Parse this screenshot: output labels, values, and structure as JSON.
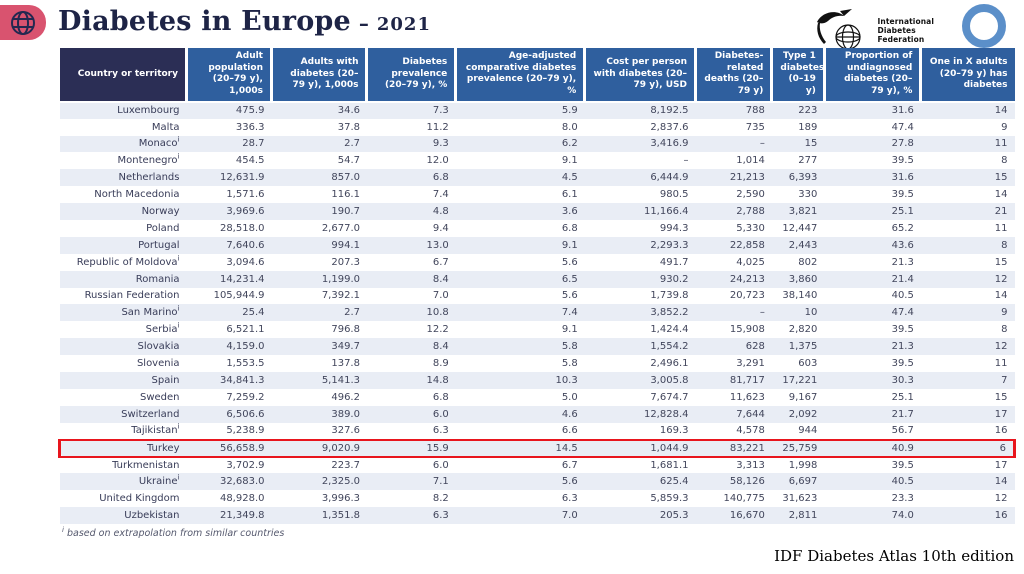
{
  "header": {
    "title": "Diabetes in Europe",
    "separator": "–",
    "year": "2021",
    "idf_name_lines": [
      "International",
      "Diabetes",
      "Federation"
    ]
  },
  "table": {
    "columns": [
      "Country or territory",
      "Adult population (20–79 y), 1,000s",
      "Adults with diabetes (20–79 y), 1,000s",
      "Diabetes prevalence (20–79 y), %",
      "Age-adjusted comparative diabetes prevalence (20–79 y), %",
      "Cost per person with diabetes (20–79 y), USD",
      "Diabetes-related deaths (20–79 y)",
      "Type 1 diabetes (0–19 y)",
      "Proportion of undiagnosed diabetes (20–79 y), %",
      "One in X adults (20–79 y) has diabetes"
    ],
    "footnote_marker": "i",
    "rows": [
      {
        "country": "Luxembourg",
        "footnote": false,
        "highlight": false,
        "values": [
          "475.9",
          "34.6",
          "7.3",
          "5.9",
          "8,192.5",
          "788",
          "223",
          "31.6",
          "14"
        ]
      },
      {
        "country": "Malta",
        "footnote": false,
        "highlight": false,
        "values": [
          "336.3",
          "37.8",
          "11.2",
          "8.0",
          "2,837.6",
          "735",
          "189",
          "47.4",
          "9"
        ]
      },
      {
        "country": "Monaco",
        "footnote": true,
        "highlight": false,
        "values": [
          "28.7",
          "2.7",
          "9.3",
          "6.2",
          "3,416.9",
          "–",
          "15",
          "27.8",
          "11"
        ]
      },
      {
        "country": "Montenegro",
        "footnote": true,
        "highlight": false,
        "values": [
          "454.5",
          "54.7",
          "12.0",
          "9.1",
          "–",
          "1,014",
          "277",
          "39.5",
          "8"
        ]
      },
      {
        "country": "Netherlands",
        "footnote": false,
        "highlight": false,
        "values": [
          "12,631.9",
          "857.0",
          "6.8",
          "4.5",
          "6,444.9",
          "21,213",
          "6,393",
          "31.6",
          "15"
        ]
      },
      {
        "country": "North Macedonia",
        "footnote": false,
        "highlight": false,
        "values": [
          "1,571.6",
          "116.1",
          "7.4",
          "6.1",
          "980.5",
          "2,590",
          "330",
          "39.5",
          "14"
        ]
      },
      {
        "country": "Norway",
        "footnote": false,
        "highlight": false,
        "values": [
          "3,969.6",
          "190.7",
          "4.8",
          "3.6",
          "11,166.4",
          "2,788",
          "3,821",
          "25.1",
          "21"
        ]
      },
      {
        "country": "Poland",
        "footnote": false,
        "highlight": false,
        "values": [
          "28,518.0",
          "2,677.0",
          "9.4",
          "6.8",
          "994.3",
          "5,330",
          "12,447",
          "65.2",
          "11"
        ]
      },
      {
        "country": "Portugal",
        "footnote": false,
        "highlight": false,
        "values": [
          "7,640.6",
          "994.1",
          "13.0",
          "9.1",
          "2,293.3",
          "22,858",
          "2,443",
          "43.6",
          "8"
        ]
      },
      {
        "country": "Republic of Moldova",
        "footnote": true,
        "highlight": false,
        "values": [
          "3,094.6",
          "207.3",
          "6.7",
          "5.6",
          "491.7",
          "4,025",
          "802",
          "21.3",
          "15"
        ]
      },
      {
        "country": "Romania",
        "footnote": false,
        "highlight": false,
        "values": [
          "14,231.4",
          "1,199.0",
          "8.4",
          "6.5",
          "930.2",
          "24,213",
          "3,860",
          "21.4",
          "12"
        ]
      },
      {
        "country": "Russian Federation",
        "footnote": false,
        "highlight": false,
        "values": [
          "105,944.9",
          "7,392.1",
          "7.0",
          "5.6",
          "1,739.8",
          "20,723",
          "38,140",
          "40.5",
          "14"
        ]
      },
      {
        "country": "San Marino",
        "footnote": true,
        "highlight": false,
        "values": [
          "25.4",
          "2.7",
          "10.8",
          "7.4",
          "3,852.2",
          "–",
          "10",
          "47.4",
          "9"
        ]
      },
      {
        "country": "Serbia",
        "footnote": true,
        "highlight": false,
        "values": [
          "6,521.1",
          "796.8",
          "12.2",
          "9.1",
          "1,424.4",
          "15,908",
          "2,820",
          "39.5",
          "8"
        ]
      },
      {
        "country": "Slovakia",
        "footnote": false,
        "highlight": false,
        "values": [
          "4,159.0",
          "349.7",
          "8.4",
          "5.8",
          "1,554.2",
          "628",
          "1,375",
          "21.3",
          "12"
        ]
      },
      {
        "country": "Slovenia",
        "footnote": false,
        "highlight": false,
        "values": [
          "1,553.5",
          "137.8",
          "8.9",
          "5.8",
          "2,496.1",
          "3,291",
          "603",
          "39.5",
          "11"
        ]
      },
      {
        "country": "Spain",
        "footnote": false,
        "highlight": false,
        "values": [
          "34,841.3",
          "5,141.3",
          "14.8",
          "10.3",
          "3,005.8",
          "81,717",
          "17,221",
          "30.3",
          "7"
        ]
      },
      {
        "country": "Sweden",
        "footnote": false,
        "highlight": false,
        "values": [
          "7,259.2",
          "496.2",
          "6.8",
          "5.0",
          "7,674.7",
          "11,623",
          "9,167",
          "25.1",
          "15"
        ]
      },
      {
        "country": "Switzerland",
        "footnote": false,
        "highlight": false,
        "values": [
          "6,506.6",
          "389.0",
          "6.0",
          "4.6",
          "12,828.4",
          "7,644",
          "2,092",
          "21.7",
          "17"
        ]
      },
      {
        "country": "Tajikistan",
        "footnote": true,
        "highlight": false,
        "values": [
          "5,238.9",
          "327.6",
          "6.3",
          "6.6",
          "169.3",
          "4,578",
          "944",
          "56.7",
          "16"
        ]
      },
      {
        "country": "Turkey",
        "footnote": false,
        "highlight": true,
        "values": [
          "56,658.9",
          "9,020.9",
          "15.9",
          "14.5",
          "1,044.9",
          "83,221",
          "25,759",
          "40.9",
          "6"
        ]
      },
      {
        "country": "Turkmenistan",
        "footnote": false,
        "highlight": false,
        "values": [
          "3,702.9",
          "223.7",
          "6.0",
          "6.7",
          "1,681.1",
          "3,313",
          "1,998",
          "39.5",
          "17"
        ]
      },
      {
        "country": "Ukraine",
        "footnote": true,
        "highlight": false,
        "values": [
          "32,683.0",
          "2,325.0",
          "7.1",
          "5.6",
          "625.4",
          "58,126",
          "6,697",
          "40.5",
          "14"
        ]
      },
      {
        "country": "United Kingdom",
        "footnote": false,
        "highlight": false,
        "values": [
          "48,928.0",
          "3,996.3",
          "8.2",
          "6.3",
          "5,859.3",
          "140,775",
          "31,623",
          "23.3",
          "12"
        ]
      },
      {
        "country": "Uzbekistan",
        "footnote": false,
        "highlight": false,
        "values": [
          "21,349.8",
          "1,351.8",
          "6.3",
          "7.0",
          "205.3",
          "16,670",
          "2,811",
          "74.0",
          "16"
        ]
      }
    ]
  },
  "footnote": "based on extrapolation from similar countries",
  "attribution": "IDF Diabetes Atlas 10th edition",
  "colors": {
    "header_dark": "#2b2e55",
    "header_blue": "#2f5f9e",
    "row_stripe": "#e9edf5",
    "highlight_red": "#e8151d",
    "accent_pink": "#d9536f",
    "circle_blue": "#5b8fc9",
    "title_navy": "#1e2446"
  }
}
